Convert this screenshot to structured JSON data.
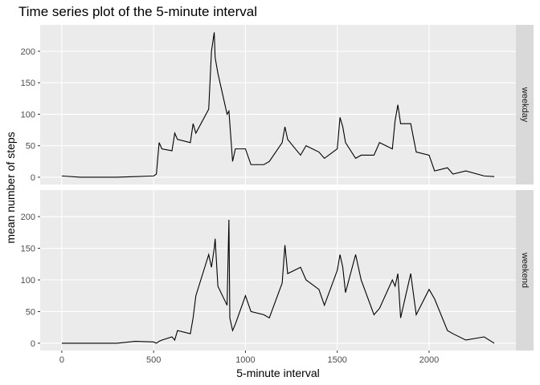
{
  "chart_data": {
    "type": "line",
    "title": "Time series plot of the 5-minute interval",
    "x_label": "5-minute interval",
    "y_label": "mean number of steps",
    "x": [
      0,
      100,
      200,
      300,
      400,
      500,
      515,
      530,
      545,
      600,
      615,
      630,
      700,
      715,
      730,
      800,
      815,
      830,
      835,
      850,
      900,
      910,
      915,
      930,
      945,
      1000,
      1030,
      1100,
      1130,
      1200,
      1215,
      1230,
      1300,
      1330,
      1400,
      1430,
      1500,
      1515,
      1530,
      1545,
      1600,
      1630,
      1700,
      1730,
      1800,
      1815,
      1830,
      1845,
      1900,
      1930,
      2000,
      2030,
      2100,
      2130,
      2200,
      2300,
      2355
    ],
    "series": [
      {
        "name": "weekday",
        "color": "#000000",
        "values": [
          2,
          0,
          0,
          0,
          1,
          2,
          5,
          55,
          45,
          42,
          70,
          60,
          55,
          85,
          70,
          108,
          200,
          230,
          190,
          165,
          100,
          105,
          85,
          25,
          45,
          45,
          20,
          20,
          25,
          55,
          80,
          60,
          35,
          50,
          40,
          30,
          45,
          95,
          80,
          55,
          30,
          35,
          35,
          55,
          45,
          90,
          115,
          85,
          85,
          40,
          35,
          10,
          15,
          5,
          10,
          2,
          1
        ]
      },
      {
        "name": "weekend",
        "color": "#000000",
        "values": [
          0,
          0,
          0,
          0,
          3,
          2,
          0,
          3,
          5,
          10,
          5,
          20,
          15,
          40,
          75,
          140,
          120,
          150,
          165,
          90,
          60,
          195,
          40,
          20,
          30,
          75,
          50,
          45,
          40,
          95,
          155,
          110,
          120,
          100,
          85,
          60,
          115,
          140,
          120,
          80,
          140,
          100,
          45,
          55,
          100,
          90,
          110,
          40,
          110,
          45,
          85,
          70,
          20,
          15,
          5,
          10,
          0
        ]
      }
    ],
    "xlim": [
      -117.75,
      2472.75
    ],
    "ylim": [
      -11.52,
      241.9
    ],
    "xticks": [
      0,
      500,
      1000,
      1500,
      2000
    ],
    "yticks": [
      0,
      50,
      100,
      150,
      200
    ],
    "grid": true
  }
}
